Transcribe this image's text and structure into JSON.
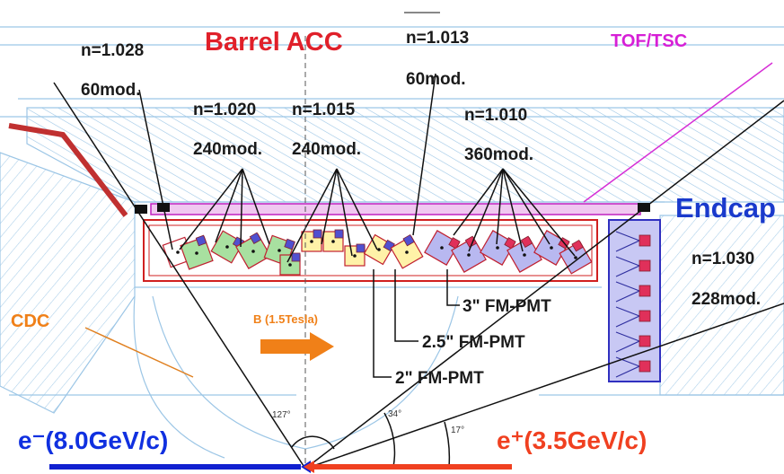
{
  "title": "Barrel ACC",
  "tof": "TOF/TSC",
  "barrel_groups": [
    {
      "index": "n=1.028",
      "modules": "60mod."
    },
    {
      "index": "n=1.020",
      "modules": "240mod."
    },
    {
      "index": "n=1.015",
      "modules": "240mod."
    },
    {
      "index": "n=1.013",
      "modules": "60mod."
    },
    {
      "index": "n=1.010",
      "modules": "360mod."
    }
  ],
  "endcap": {
    "title": "Endcap",
    "index": "n=1.030",
    "modules": "228mod."
  },
  "cdc": "CDC",
  "field": "B (1.5Tesla)",
  "pmts": [
    "3\" FM-PMT",
    "2.5\" FM-PMT",
    "2\" FM-PMT"
  ],
  "angles": [
    "127°",
    "34°",
    "17°"
  ],
  "beams": [
    "e⁻(8.0GeV/c)",
    "e⁺(3.5GeV/c)"
  ]
}
